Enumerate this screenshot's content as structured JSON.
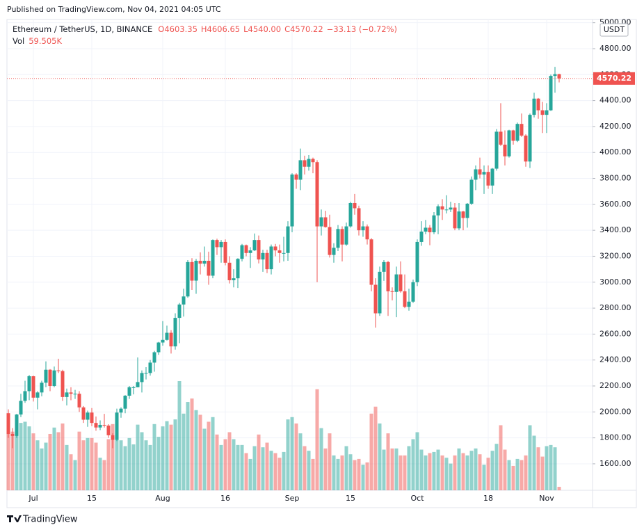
{
  "chart_data": {
    "type": "candlestick",
    "published": "Published on TradingView.com, Nov 04, 2021 04:05 UTC",
    "symbol": "Ethereum / TetherUS, 1D, BINANCE",
    "ohlc_labels": [
      "O4603.35",
      "H4606.65",
      "L4540.00",
      "C4570.22"
    ],
    "change_label": "−33.13 (−0.72%)",
    "volume_title": "Vol",
    "volume_label": "59.505K",
    "currency": "USDT",
    "last_price_label": "4570.22",
    "footer": "TradingView",
    "up_color": "#26a69a",
    "down_color": "#ef5350",
    "ylim": [
      1396,
      5025
    ],
    "yticks": [
      {
        "value": 1600,
        "label": "1600.00"
      },
      {
        "value": 1800,
        "label": "1800.00"
      },
      {
        "value": 2000,
        "label": "2000.00"
      },
      {
        "value": 2200,
        "label": "2200.00"
      },
      {
        "value": 2400,
        "label": "2400.00"
      },
      {
        "value": 2600,
        "label": "2600.00"
      },
      {
        "value": 2800,
        "label": "2800.00"
      },
      {
        "value": 3000,
        "label": "3000.00"
      },
      {
        "value": 3200,
        "label": "3200.00"
      },
      {
        "value": 3400,
        "label": "3400.00"
      },
      {
        "value": 3600,
        "label": "3600.00"
      },
      {
        "value": 3800,
        "label": "3800.00"
      },
      {
        "value": 4000,
        "label": "4000.00"
      },
      {
        "value": 4200,
        "label": "4200.00"
      },
      {
        "value": 4400,
        "label": "4400.00"
      },
      {
        "value": 4600,
        "label": "4600.00"
      },
      {
        "value": 4800,
        "label": "4800.00"
      },
      {
        "value": 5000,
        "label": "5000.00"
      }
    ],
    "xticks": [
      {
        "value": 6,
        "label": "Jul"
      },
      {
        "value": 20,
        "label": "15"
      },
      {
        "value": 37,
        "label": "Aug"
      },
      {
        "value": 52,
        "label": "16"
      },
      {
        "value": 68,
        "label": "Sep"
      },
      {
        "value": 82,
        "label": "15"
      },
      {
        "value": 98,
        "label": "Oct"
      },
      {
        "value": 115,
        "label": "18"
      },
      {
        "value": 129,
        "label": "Nov"
      }
    ],
    "candles": [
      [
        1990,
        2020,
        1800,
        1830
      ],
      [
        1830,
        1875,
        1720,
        1815
      ],
      [
        1815,
        1985,
        1800,
        1980
      ],
      [
        1980,
        2140,
        1960,
        2085
      ],
      [
        2085,
        2240,
        2070,
        2160
      ],
      [
        2160,
        2285,
        2090,
        2275
      ],
      [
        2275,
        2280,
        2080,
        2110
      ],
      [
        2110,
        2160,
        2020,
        2150
      ],
      [
        2150,
        2240,
        2120,
        2225
      ],
      [
        2225,
        2390,
        2190,
        2325
      ],
      [
        2325,
        2330,
        2160,
        2200
      ],
      [
        2200,
        2350,
        2190,
        2320
      ],
      [
        2320,
        2410,
        2300,
        2315
      ],
      [
        2315,
        2325,
        2085,
        2115
      ],
      [
        2115,
        2180,
        2050,
        2150
      ],
      [
        2150,
        2190,
        2090,
        2140
      ],
      [
        2140,
        2170,
        2100,
        2140
      ],
      [
        2140,
        2160,
        2000,
        2035
      ],
      [
        2035,
        2045,
        1915,
        1940
      ],
      [
        1940,
        2010,
        1885,
        1995
      ],
      [
        1995,
        2030,
        1890,
        1915
      ],
      [
        1915,
        1965,
        1855,
        1880
      ],
      [
        1880,
        1935,
        1860,
        1900
      ],
      [
        1900,
        1985,
        1880,
        1895
      ],
      [
        1895,
        1905,
        1800,
        1820
      ],
      [
        1820,
        1835,
        1720,
        1785
      ],
      [
        1785,
        2025,
        1775,
        1995
      ],
      [
        1995,
        2035,
        1955,
        2025
      ],
      [
        2025,
        2130,
        1990,
        2125
      ],
      [
        2125,
        2200,
        2100,
        2190
      ],
      [
        2190,
        2200,
        2135,
        2190
      ],
      [
        2190,
        2420,
        2190,
        2230
      ],
      [
        2230,
        2320,
        2150,
        2300
      ],
      [
        2300,
        2345,
        2250,
        2300
      ],
      [
        2300,
        2400,
        2280,
        2380
      ],
      [
        2380,
        2470,
        2310,
        2460
      ],
      [
        2460,
        2540,
        2440,
        2535
      ],
      [
        2535,
        2700,
        2510,
        2555
      ],
      [
        2555,
        2665,
        2550,
        2610
      ],
      [
        2610,
        2630,
        2450,
        2505
      ],
      [
        2505,
        2760,
        2480,
        2725
      ],
      [
        2725,
        2840,
        2530,
        2828
      ],
      [
        2828,
        2950,
        2735,
        2890
      ],
      [
        2890,
        3170,
        2880,
        3155
      ],
      [
        3155,
        3185,
        2940,
        3012
      ],
      [
        3012,
        3180,
        2910,
        3165
      ],
      [
        3165,
        3230,
        3060,
        3143
      ],
      [
        3143,
        3275,
        3120,
        3165
      ],
      [
        3165,
        3235,
        2980,
        3050
      ],
      [
        3050,
        3330,
        3030,
        3325
      ],
      [
        3325,
        3335,
        3210,
        3270
      ],
      [
        3270,
        3325,
        3150,
        3310
      ],
      [
        3310,
        3330,
        3130,
        3150
      ],
      [
        3150,
        3200,
        2990,
        3015
      ],
      [
        3015,
        3100,
        2960,
        3030
      ],
      [
        3030,
        3185,
        2955,
        3180
      ],
      [
        3180,
        3295,
        3160,
        3285
      ],
      [
        3285,
        3290,
        3200,
        3225
      ],
      [
        3225,
        3270,
        3110,
        3245
      ],
      [
        3245,
        3375,
        3240,
        3325
      ],
      [
        3325,
        3360,
        3145,
        3175
      ],
      [
        3175,
        3250,
        3080,
        3225
      ],
      [
        3225,
        3250,
        3070,
        3100
      ],
      [
        3100,
        3290,
        3060,
        3275
      ],
      [
        3275,
        3295,
        3200,
        3245
      ],
      [
        3245,
        3290,
        3150,
        3225
      ],
      [
        3225,
        3350,
        3160,
        3225
      ],
      [
        3225,
        3470,
        3165,
        3430
      ],
      [
        3430,
        3840,
        3385,
        3830
      ],
      [
        3830,
        3840,
        3720,
        3790
      ],
      [
        3790,
        4030,
        3710,
        3940
      ],
      [
        3940,
        3975,
        3830,
        3890
      ],
      [
        3890,
        3980,
        3860,
        3950
      ],
      [
        3950,
        3960,
        3840,
        3925
      ],
      [
        3925,
        3940,
        3000,
        3430
      ],
      [
        3430,
        3560,
        3360,
        3500
      ],
      [
        3500,
        3550,
        3420,
        3425
      ],
      [
        3425,
        3520,
        3190,
        3210
      ],
      [
        3210,
        3300,
        3150,
        3265
      ],
      [
        3265,
        3440,
        3240,
        3410
      ],
      [
        3410,
        3430,
        3160,
        3290
      ],
      [
        3290,
        3460,
        3280,
        3430
      ],
      [
        3430,
        3620,
        3420,
        3610
      ],
      [
        3610,
        3680,
        3520,
        3570
      ],
      [
        3570,
        3590,
        3360,
        3400
      ],
      [
        3400,
        3470,
        3350,
        3430
      ],
      [
        3430,
        3445,
        3290,
        3330
      ],
      [
        3330,
        3340,
        2930,
        2980
      ],
      [
        2980,
        3030,
        2650,
        2760
      ],
      [
        2760,
        3120,
        2740,
        3080
      ],
      [
        3080,
        3170,
        3010,
        3155
      ],
      [
        3155,
        3165,
        2740,
        2930
      ],
      [
        2930,
        2960,
        2860,
        2925
      ],
      [
        2925,
        3120,
        2730,
        3060
      ],
      [
        3060,
        3160,
        2920,
        2930
      ],
      [
        2930,
        3060,
        2800,
        2810
      ],
      [
        2810,
        2950,
        2780,
        2850
      ],
      [
        2850,
        3020,
        2840,
        3000
      ],
      [
        3000,
        3330,
        2970,
        3310
      ],
      [
        3310,
        3470,
        3280,
        3390
      ],
      [
        3390,
        3480,
        3370,
        3420
      ],
      [
        3420,
        3440,
        3285,
        3385
      ],
      [
        3385,
        3540,
        3370,
        3515
      ],
      [
        3515,
        3600,
        3370,
        3585
      ],
      [
        3585,
        3640,
        3480,
        3560
      ],
      [
        3560,
        3670,
        3530,
        3560
      ],
      [
        3560,
        3620,
        3540,
        3575
      ],
      [
        3575,
        3610,
        3400,
        3415
      ],
      [
        3415,
        3610,
        3400,
        3545
      ],
      [
        3545,
        3550,
        3400,
        3495
      ],
      [
        3495,
        3610,
        3420,
        3605
      ],
      [
        3605,
        3815,
        3595,
        3790
      ],
      [
        3790,
        3900,
        3710,
        3870
      ],
      [
        3870,
        3960,
        3800,
        3830
      ],
      [
        3830,
        3900,
        3680,
        3850
      ],
      [
        3850,
        3900,
        3720,
        3745
      ],
      [
        3745,
        3880,
        3680,
        3875
      ],
      [
        3875,
        4180,
        3860,
        4160
      ],
      [
        4160,
        4380,
        4050,
        4060
      ],
      [
        4060,
        4170,
        3900,
        3970
      ],
      [
        3970,
        4175,
        3960,
        4170
      ],
      [
        4170,
        4175,
        4060,
        4090
      ],
      [
        4090,
        4230,
        4080,
        4220
      ],
      [
        4220,
        4300,
        4120,
        4130
      ],
      [
        4130,
        4140,
        3890,
        3930
      ],
      [
        3930,
        4300,
        3880,
        4290
      ],
      [
        4290,
        4460,
        4270,
        4415
      ],
      [
        4415,
        4420,
        4260,
        4325
      ],
      [
        4325,
        4390,
        4150,
        4290
      ],
      [
        4290,
        4380,
        4150,
        4325
      ],
      [
        4325,
        4600,
        4320,
        4590
      ],
      [
        4590,
        4660,
        4460,
        4603.35
      ],
      [
        4603.35,
        4606.65,
        4540,
        4570.22
      ]
    ],
    "volumes": [
      1260,
      1010,
      1070,
      1160,
      1180,
      1100,
      980,
      860,
      720,
      820,
      970,
      1080,
      1000,
      1150,
      780,
      620,
      520,
      1010,
      860,
      900,
      900,
      820,
      560,
      520,
      880,
      1140,
      1300,
      860,
      760,
      900,
      790,
      1130,
      1000,
      860,
      780,
      1140,
      920,
      1100,
      1190,
      1130,
      1220,
      1880,
      1320,
      1520,
      1580,
      1380,
      1300,
      1060,
      1180,
      1260,
      960,
      780,
      880,
      1000,
      880,
      780,
      780,
      640,
      540,
      760,
      960,
      740,
      820,
      680,
      640,
      560,
      660,
      1220,
      1260,
      1150,
      980,
      760,
      680,
      540,
      1740,
      1070,
      720,
      980,
      600,
      540,
      600,
      760,
      620,
      520,
      540,
      440,
      480,
      1320,
      1440,
      1150,
      700,
      980,
      720,
      720,
      600,
      600,
      760,
      880,
      1000,
      700,
      600,
      640,
      660,
      700,
      600,
      560,
      460,
      600,
      720,
      640,
      600,
      680,
      720,
      620,
      440,
      560,
      680,
      800,
      1120,
      700,
      520,
      420,
      540,
      520,
      600,
      1120,
      940,
      740,
      580,
      760,
      780,
      740,
      59.505
    ]
  }
}
